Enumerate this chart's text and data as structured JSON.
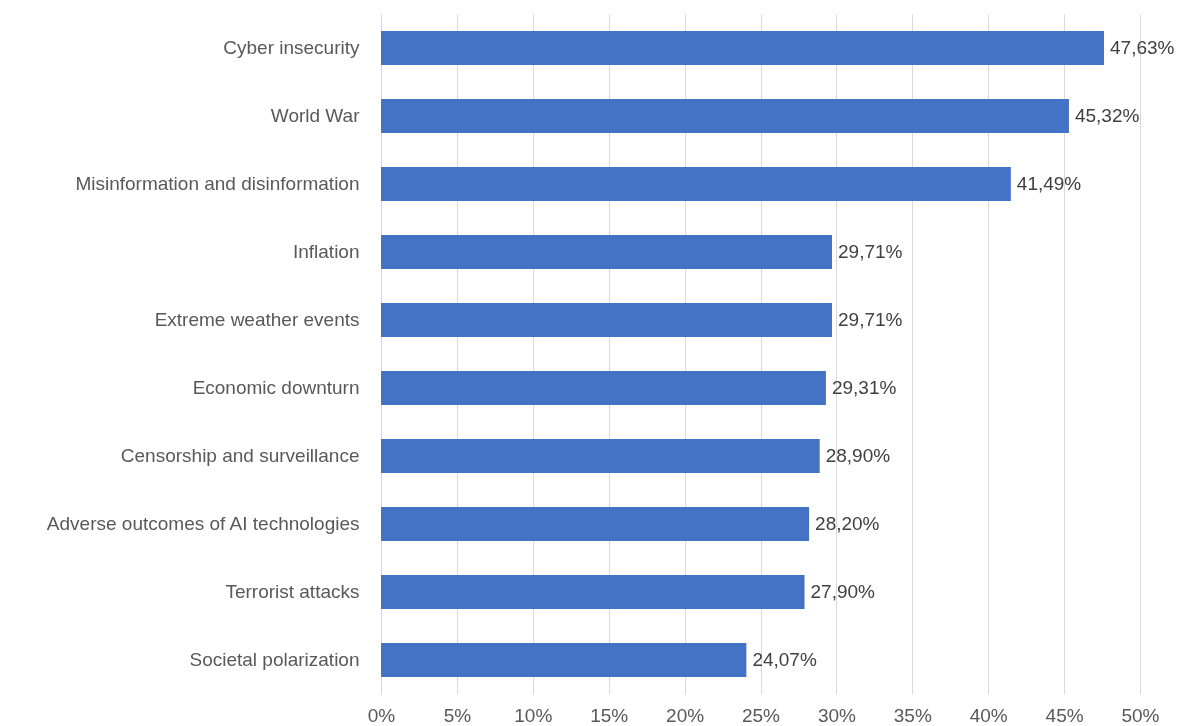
{
  "chart_data": {
    "type": "bar",
    "orientation": "horizontal",
    "categories": [
      "Cyber insecurity",
      "World War",
      "Misinformation and disinformation",
      "Inflation",
      "Extreme weather events",
      "Economic downturn",
      "Censorship and surveillance",
      "Adverse outcomes of AI technologies",
      "Terrorist attacks",
      "Societal polarization"
    ],
    "values": [
      47.63,
      45.32,
      41.49,
      29.71,
      29.71,
      29.31,
      28.9,
      28.2,
      27.9,
      24.07
    ],
    "value_labels": [
      "47,63%",
      "45,32%",
      "41,49%",
      "29,71%",
      "29,71%",
      "29,31%",
      "28,90%",
      "28,20%",
      "27,90%",
      "24,07%"
    ],
    "color": "#4472c4",
    "xlim": [
      0,
      50
    ],
    "xticks": [
      {
        "value": 0,
        "label": "0%"
      },
      {
        "value": 5,
        "label": "5%"
      },
      {
        "value": 10,
        "label": "10%"
      },
      {
        "value": 15,
        "label": "15%"
      },
      {
        "value": 20,
        "label": "20%"
      },
      {
        "value": 25,
        "label": "25%"
      },
      {
        "value": 30,
        "label": "30%"
      },
      {
        "value": 35,
        "label": "35%"
      },
      {
        "value": 40,
        "label": "40%"
      },
      {
        "value": 45,
        "label": "45%"
      },
      {
        "value": 50,
        "label": "50%"
      }
    ],
    "grid": "x"
  }
}
